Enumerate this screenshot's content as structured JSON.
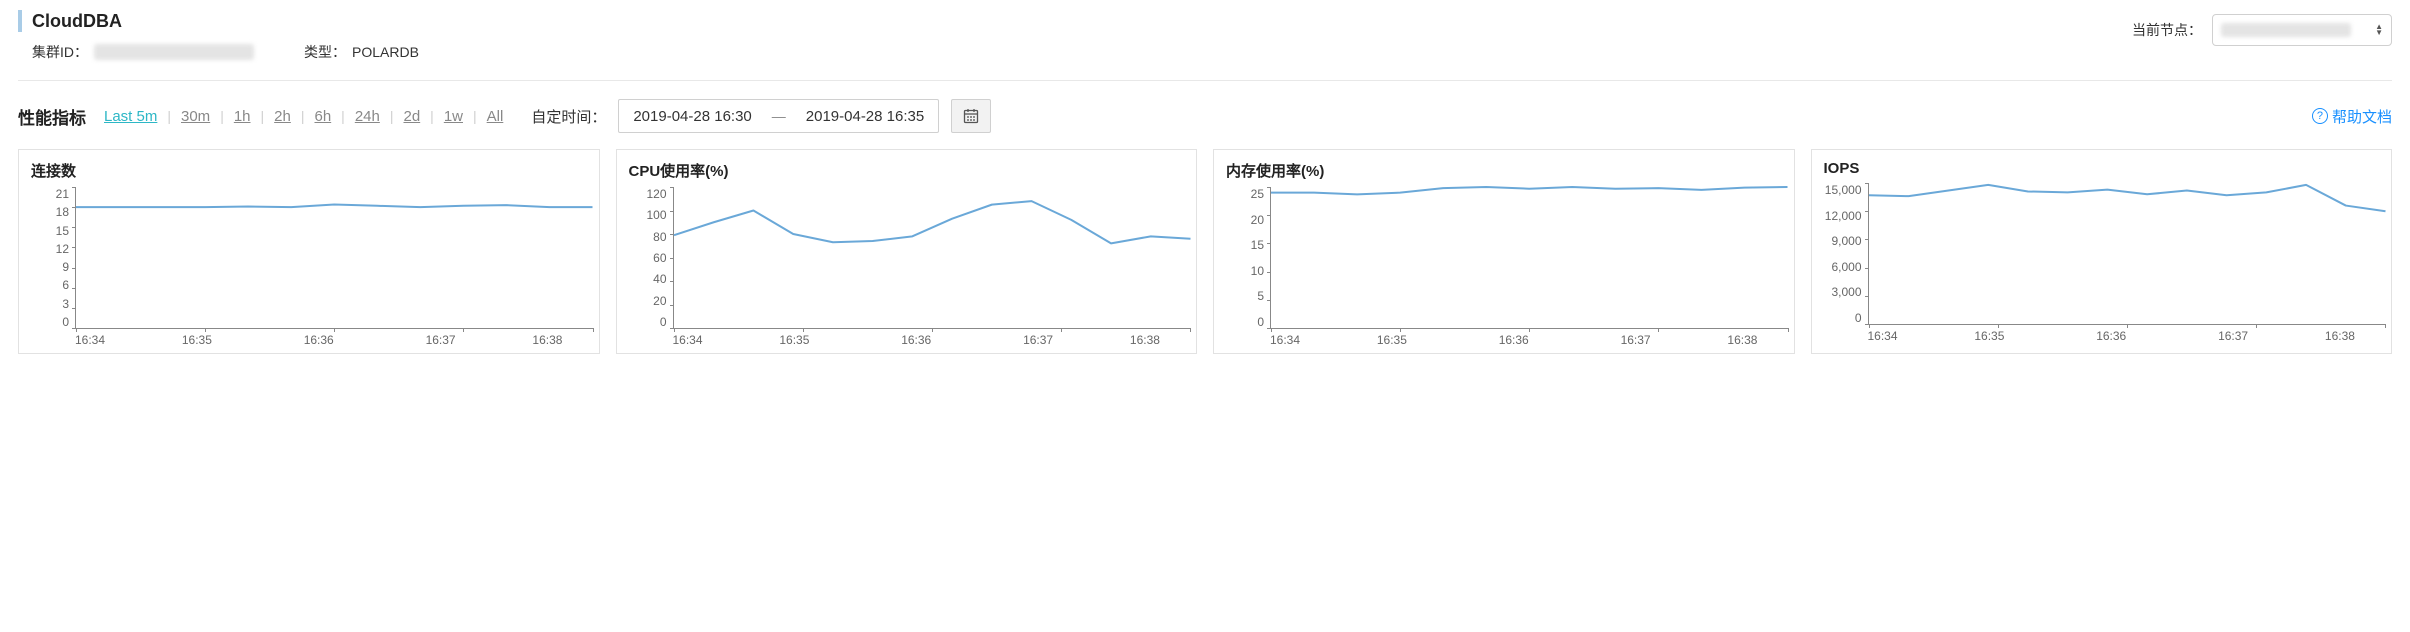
{
  "header": {
    "title": "CloudDBA",
    "cluster_id_label": "集群ID：",
    "type_label": "类型：",
    "type_value": "POLARDB",
    "node_label": "当前节点："
  },
  "toolbar": {
    "section_title": "性能指标",
    "ranges": [
      "Last 5m",
      "30m",
      "1h",
      "2h",
      "6h",
      "24h",
      "2d",
      "1w",
      "All"
    ],
    "active_range_index": 0,
    "custom_time_label": "自定时间：",
    "date_from": "2019-04-28 16:30",
    "date_to": "2019-04-28 16:35",
    "help_label": "帮助文档"
  },
  "style": {
    "line_color": "#6aa8d8",
    "line_width": 2,
    "axis_color": "#888888",
    "tick_color": "#888888",
    "text_color": "#666666",
    "card_border": "#e2e2e2",
    "background": "#ffffff"
  },
  "charts": [
    {
      "title": "连接数",
      "type": "line",
      "ylim": [
        0,
        21
      ],
      "ytick_step": 3,
      "yticks": [
        21,
        18,
        15,
        12,
        9,
        6,
        3,
        0
      ],
      "xticks": [
        "16:34",
        "16:35",
        "16:36",
        "16:37",
        "16:38"
      ],
      "values": [
        18,
        18,
        18,
        18,
        18.1,
        18,
        18.4,
        18.2,
        18,
        18.2,
        18.3,
        18,
        18
      ]
    },
    {
      "title": "CPU使用率(%)",
      "type": "line",
      "ylim": [
        0,
        120
      ],
      "ytick_step": 20,
      "yticks": [
        120,
        100,
        80,
        60,
        40,
        20,
        0
      ],
      "xticks": [
        "16:34",
        "16:35",
        "16:36",
        "16:37",
        "16:38"
      ],
      "values": [
        79,
        90,
        100,
        80,
        73,
        74,
        78,
        93,
        105,
        108,
        92,
        72,
        78,
        76
      ]
    },
    {
      "title": "内存使用率(%)",
      "type": "line",
      "ylim": [
        0,
        25
      ],
      "ytick_step": 5,
      "yticks": [
        25,
        20,
        15,
        10,
        5,
        0
      ],
      "xticks": [
        "16:34",
        "16:35",
        "16:36",
        "16:37",
        "16:38"
      ],
      "values": [
        24,
        24,
        23.7,
        24,
        24.8,
        25,
        24.7,
        25,
        24.7,
        24.8,
        24.5,
        24.9,
        25
      ]
    },
    {
      "title": "IOPS",
      "type": "line",
      "ylim": [
        0,
        15000
      ],
      "ytick_step": 3000,
      "yticks": [
        15000,
        12000,
        9000,
        6000,
        3000,
        0
      ],
      "xticks": [
        "16:34",
        "16:35",
        "16:36",
        "16:37",
        "16:38"
      ],
      "values": [
        13700,
        13600,
        14200,
        14800,
        14100,
        14000,
        14300,
        13800,
        14200,
        13700,
        14000,
        14800,
        12600,
        12000
      ]
    }
  ]
}
